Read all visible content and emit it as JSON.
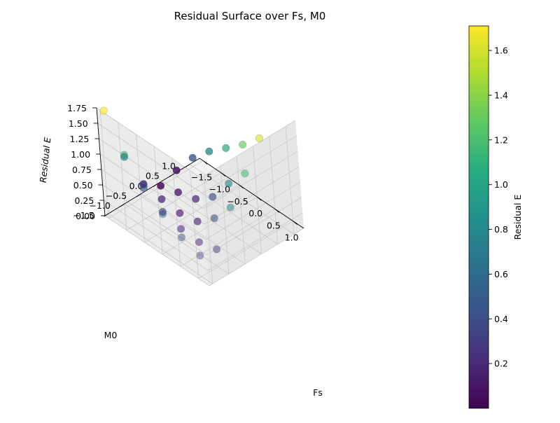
{
  "chart_data": {
    "type": "scatter",
    "title": "Residual Surface over Fs, M0",
    "xlabel": "Fs",
    "ylabel": "M0",
    "zlabel": "Residual E",
    "colorbar_label": "Residual E",
    "colormap": "viridis",
    "xlim": [
      -1.6,
      1.3
    ],
    "ylim": [
      -1.6,
      1.3
    ],
    "zlim": [
      0,
      1.75
    ],
    "x_ticks": [
      "−1.5",
      "−1.0",
      "−0.5",
      "0.0",
      "0.5",
      "1.0"
    ],
    "y_ticks": [
      "−1.5",
      "−1.0",
      "−0.5",
      "0.0",
      "0.5",
      "1.0"
    ],
    "z_ticks": [
      "0.00",
      "0.25",
      "0.50",
      "0.75",
      "1.00",
      "1.25",
      "1.50",
      "1.75"
    ],
    "colorbar_ticks": [
      "0.2",
      "0.4",
      "0.6",
      "0.8",
      "1.0",
      "1.2",
      "1.4",
      "1.6"
    ],
    "colorbar_range": [
      0.0,
      1.71
    ],
    "grid": true,
    "points": [
      {
        "fs": -1.5,
        "m0": -1.5,
        "e": 1.71
      },
      {
        "fs": -1.0,
        "m0": -1.5,
        "e": 1.19
      },
      {
        "fs": -0.5,
        "m0": -1.5,
        "e": 0.9
      },
      {
        "fs": 0.0,
        "m0": -1.5,
        "e": 0.62
      },
      {
        "fs": 0.5,
        "m0": -1.5,
        "e": 0.44
      },
      {
        "fs": 1.0,
        "m0": -1.5,
        "e": 0.34
      },
      {
        "fs": -1.5,
        "m0": -1.0,
        "e": 0.8
      },
      {
        "fs": -1.0,
        "m0": -1.0,
        "e": 0.49
      },
      {
        "fs": -0.5,
        "m0": -1.0,
        "e": 0.3
      },
      {
        "fs": 0.0,
        "m0": -1.0,
        "e": 0.22
      },
      {
        "fs": 0.5,
        "m0": -1.0,
        "e": 0.2
      },
      {
        "fs": 1.0,
        "m0": -1.0,
        "e": 0.28
      },
      {
        "fs": -1.5,
        "m0": -0.5,
        "e": 0.2
      },
      {
        "fs": -1.0,
        "m0": -0.5,
        "e": 0.15
      },
      {
        "fs": -0.5,
        "m0": -0.5,
        "e": 0.12
      },
      {
        "fs": 0.0,
        "m0": -0.5,
        "e": 0.18
      },
      {
        "fs": 0.5,
        "m0": -0.5,
        "e": 0.43
      },
      {
        "fs": 1.0,
        "m0": -0.5,
        "e": 0.8
      },
      {
        "fs": -1.5,
        "m0": 0.0,
        "e": 0.01
      },
      {
        "fs": -1.0,
        "m0": 0.0,
        "e": 0.1
      },
      {
        "fs": -0.5,
        "m0": 0.0,
        "e": 0.19
      },
      {
        "fs": 0.0,
        "m0": 0.0,
        "e": 0.42
      },
      {
        "fs": 0.5,
        "m0": 0.0,
        "e": 0.83
      },
      {
        "fs": 1.0,
        "m0": 0.0,
        "e": 1.19
      },
      {
        "fs": -1.5,
        "m0": 0.5,
        "e": 0.1
      },
      {
        "fs": -1.0,
        "m0": 0.5,
        "e": 0.5
      },
      {
        "fs": -0.5,
        "m0": 0.5,
        "e": 0.8
      },
      {
        "fs": 0.0,
        "m0": 0.5,
        "e": 1.05
      },
      {
        "fs": 0.5,
        "m0": 0.5,
        "e": 1.3
      },
      {
        "fs": 1.0,
        "m0": 0.5,
        "e": 1.6
      }
    ]
  }
}
